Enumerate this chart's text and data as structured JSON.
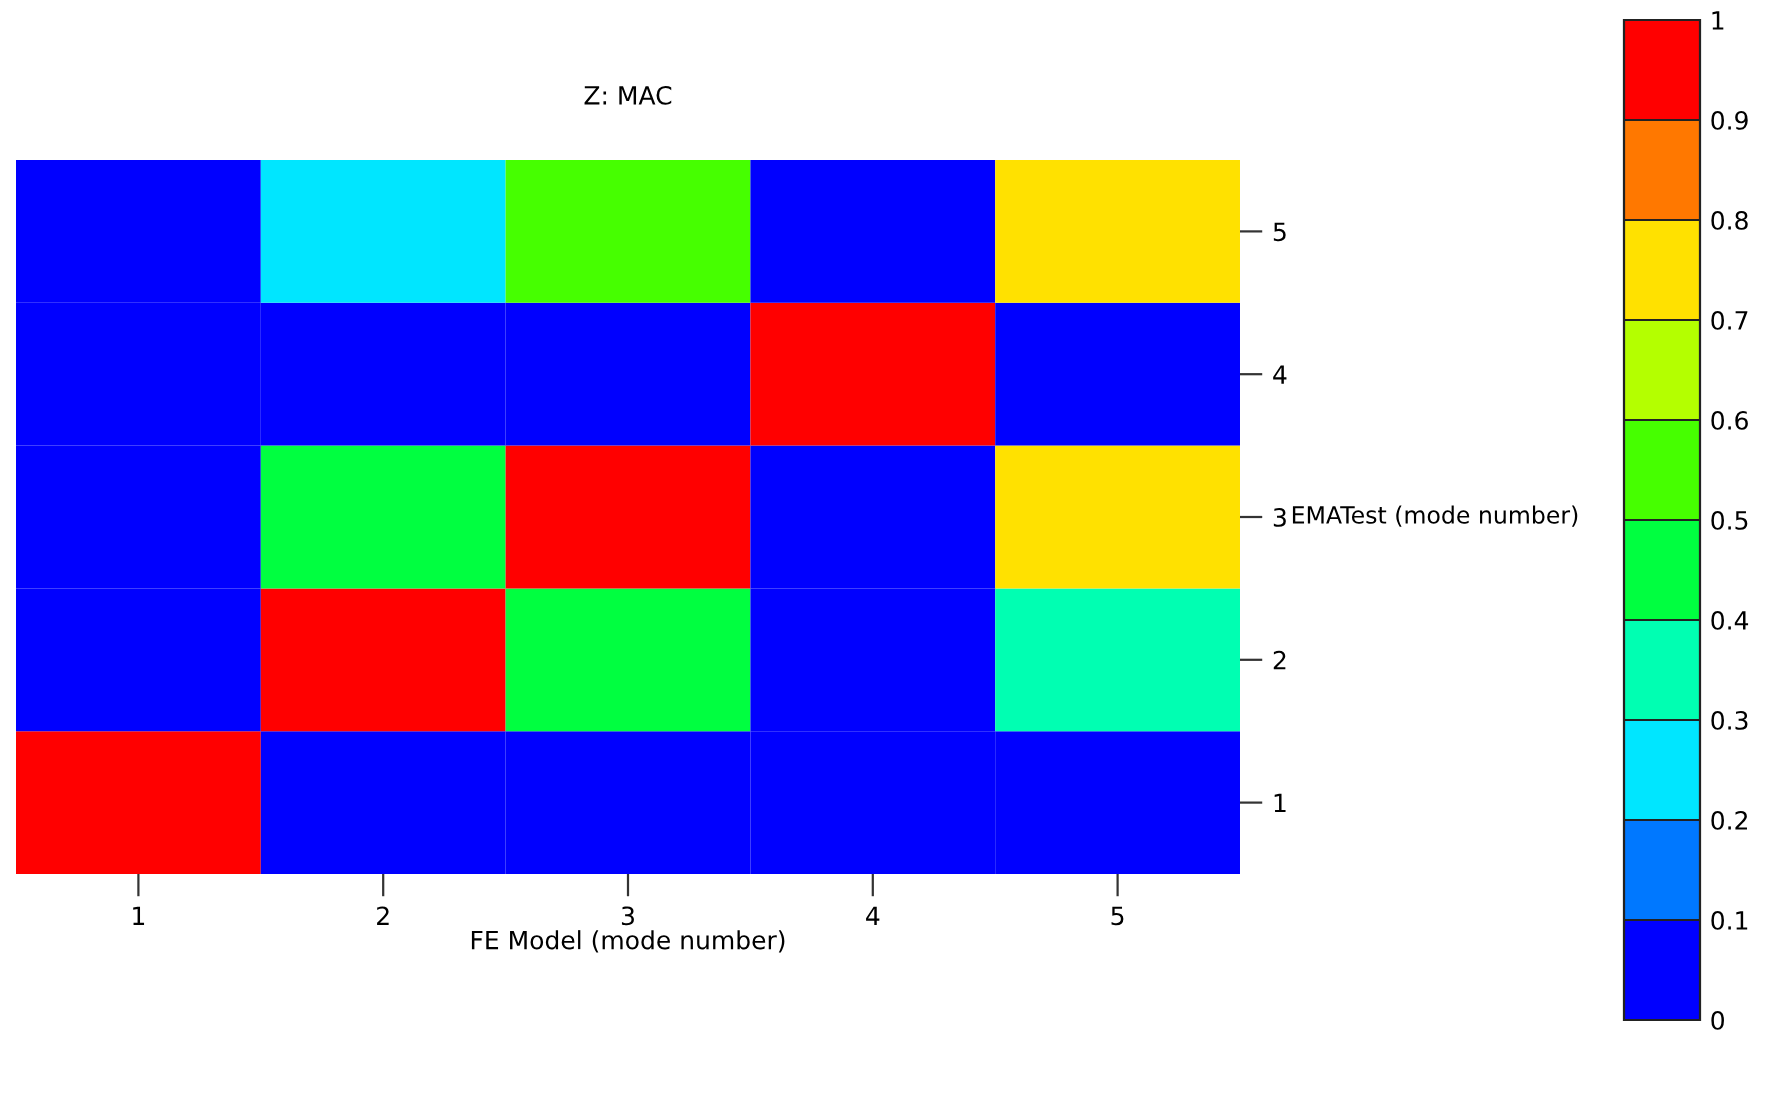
{
  "chart_data": {
    "type": "heatmap",
    "title": "Z: MAC",
    "xlabel": "FE Model (mode number)",
    "ylabel": "EMATest (mode number)",
    "categories": [
      "1",
      "2",
      "3",
      "4",
      "5"
    ],
    "y_categories": [
      "5",
      "4",
      "3",
      "2",
      "1"
    ],
    "cells": [
      [
        0.05,
        0.25,
        0.55,
        0.05,
        0.75
      ],
      [
        0.05,
        0.05,
        0.05,
        0.95,
        0.05
      ],
      [
        0.05,
        0.45,
        0.95,
        0.05,
        0.75
      ],
      [
        0.05,
        0.95,
        0.45,
        0.05,
        0.35
      ],
      [
        0.95,
        0.05,
        0.05,
        0.05,
        0.05
      ]
    ],
    "colors": [
      "#0000ff",
      "#0078ff",
      "#00e6ff",
      "#00ffb2",
      "#00ff40",
      "#46ff00",
      "#b4ff00",
      "#ffe100",
      "#ff7800",
      "#ff0000"
    ],
    "clim": [
      0,
      1
    ],
    "cticks": [
      0,
      0.1,
      0.2,
      0.3,
      0.4,
      0.5,
      0.6,
      0.7,
      0.8,
      0.9,
      1
    ]
  }
}
